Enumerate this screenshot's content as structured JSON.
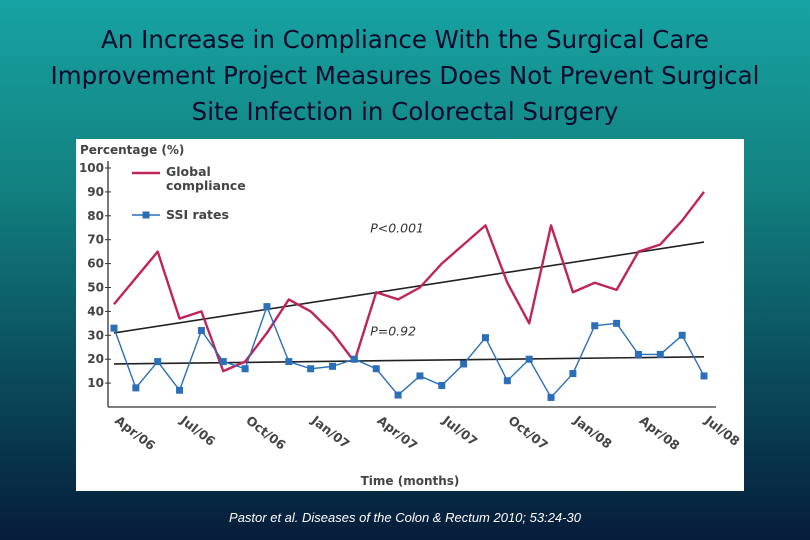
{
  "slide": {
    "title_lines": [
      "An Increase in Compliance With the Surgical Care",
      "Improvement Project Measures Does Not Prevent Surgical",
      "Site Infection in Colorectal Surgery"
    ],
    "citation": "Pastor et al. Diseases of the Colon & Rectum 2010; 53:24-30"
  },
  "chart_data": {
    "type": "line",
    "ylabel": "Percentage (%)",
    "xlabel": "Time (months)",
    "ylim": [
      0,
      100
    ],
    "y_ticks": [
      10,
      20,
      30,
      40,
      50,
      60,
      70,
      80,
      90,
      100
    ],
    "x_tick_labels": [
      "Apr/06",
      "Jul/06",
      "Oct/06",
      "Jan/07",
      "Apr/07",
      "Jul/07",
      "Oct/07",
      "Jan/08",
      "Apr/08",
      "Jul/08"
    ],
    "x_tick_positions": [
      0,
      3,
      6,
      9,
      12,
      15,
      18,
      21,
      24,
      27
    ],
    "xlim": [
      0,
      27
    ],
    "legend": {
      "placement": "top-left",
      "entries": [
        {
          "name": "Global compliance",
          "lines": [
            "Global",
            "compliance"
          ],
          "color": "#c0245c",
          "marker": "none"
        },
        {
          "name": "SSI rates",
          "lines": [
            "SSI rates"
          ],
          "color": "#2a6fb8",
          "marker": "square"
        }
      ]
    },
    "series": [
      {
        "name": "Global compliance",
        "color": "#c0245c",
        "x": [
          0,
          1,
          2,
          3,
          4,
          5,
          6,
          7,
          8,
          9,
          10,
          11,
          12,
          13,
          14,
          15,
          16,
          17,
          18,
          19,
          20,
          21,
          22,
          23,
          24,
          25,
          26,
          27
        ],
        "values": [
          43,
          54,
          65,
          37,
          40,
          15,
          19,
          31,
          45,
          40,
          31,
          19,
          48,
          45,
          50,
          60,
          68,
          76,
          52,
          35,
          76,
          48,
          52,
          49,
          65,
          68,
          78,
          90
        ]
      },
      {
        "name": "SSI rates",
        "color": "#2a6fb8",
        "x": [
          0,
          1,
          2,
          3,
          4,
          5,
          6,
          7,
          8,
          9,
          10,
          11,
          12,
          13,
          14,
          15,
          16,
          17,
          18,
          19,
          20,
          21,
          22,
          23,
          24,
          25,
          26,
          27
        ],
        "values": [
          33,
          8,
          19,
          7,
          32,
          19,
          16,
          42,
          19,
          16,
          17,
          20,
          16,
          5,
          13,
          9,
          18,
          29,
          11,
          20,
          4,
          14,
          34,
          35,
          22,
          22,
          30,
          13
        ]
      }
    ],
    "trend_lines": [
      {
        "name": "Compliance trend",
        "x": [
          0,
          27
        ],
        "values": [
          31,
          69
        ],
        "label": "P<0.001",
        "label_x": 12,
        "label_y": 73
      },
      {
        "name": "SSI trend",
        "x": [
          0,
          27
        ],
        "values": [
          18,
          21
        ],
        "label": "P=0.92",
        "label_x": 12,
        "label_y": 30
      }
    ]
  }
}
